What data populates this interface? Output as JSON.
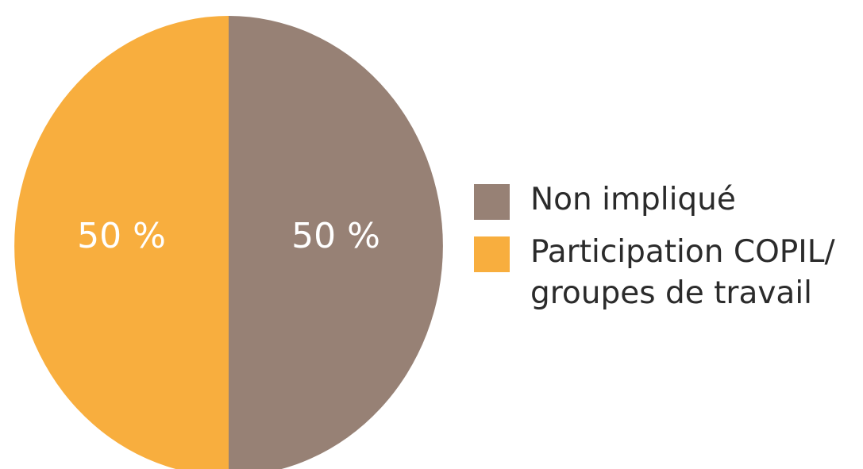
{
  "chart_data": {
    "type": "pie",
    "categories": [
      "Non impliqué",
      "Participation COPIL/ groupes de travail"
    ],
    "values": [
      50,
      50
    ],
    "value_labels": [
      "50 %",
      "50 %"
    ],
    "colors": [
      "#978175",
      "#f8ae3e"
    ]
  }
}
